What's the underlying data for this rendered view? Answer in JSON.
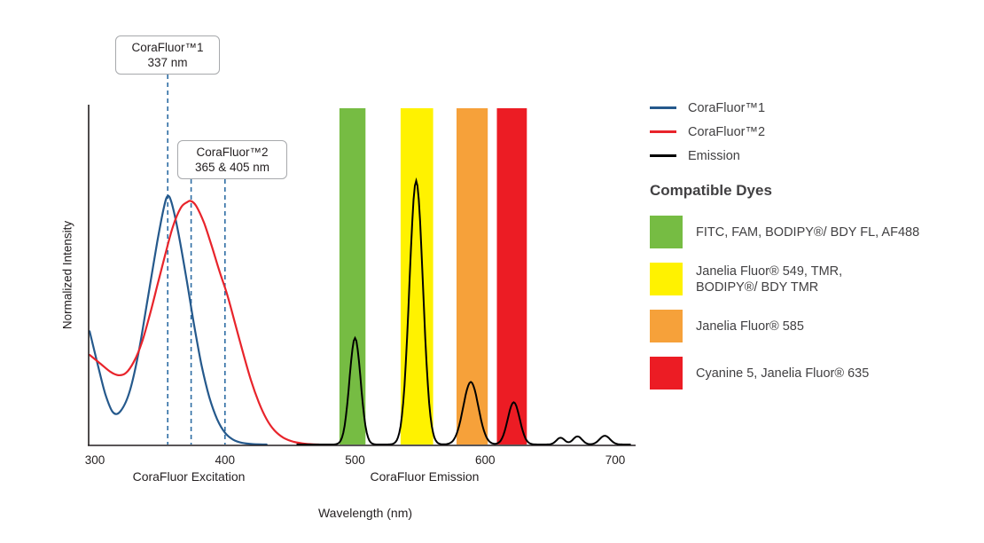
{
  "chart_data": {
    "type": "line",
    "title": "",
    "xlabel": "Wavelength (nm)",
    "ylabel": "Normalized Intensity",
    "x_ticks": [
      300,
      400,
      500,
      600,
      700
    ],
    "x_range": [
      300,
      715
    ],
    "y_range": [
      0,
      1
    ],
    "grid": false,
    "legend_position": "right",
    "region_labels": [
      "CoraFluor Excitation",
      "CoraFluor Emission"
    ],
    "series": [
      {
        "name": "CoraFluor™1",
        "kind": "excitation",
        "color": "#25598C",
        "points": [
          [
            296,
            0.335
          ],
          [
            302,
            0.24
          ],
          [
            308,
            0.15
          ],
          [
            314,
            0.095
          ],
          [
            320,
            0.1
          ],
          [
            327,
            0.16
          ],
          [
            334,
            0.28
          ],
          [
            341,
            0.44
          ],
          [
            348,
            0.6
          ],
          [
            353,
            0.7
          ],
          [
            356,
            0.735
          ],
          [
            359,
            0.715
          ],
          [
            364,
            0.63
          ],
          [
            370,
            0.5
          ],
          [
            376,
            0.36
          ],
          [
            382,
            0.235
          ],
          [
            388,
            0.14
          ],
          [
            394,
            0.075
          ],
          [
            400,
            0.035
          ],
          [
            406,
            0.015
          ],
          [
            413,
            0.005
          ],
          [
            422,
            0.001
          ],
          [
            432,
            0
          ]
        ]
      },
      {
        "name": "CoraFluor™2",
        "kind": "excitation",
        "color": "#E8242B",
        "points": [
          [
            296,
            0.265
          ],
          [
            304,
            0.24
          ],
          [
            312,
            0.215
          ],
          [
            318,
            0.205
          ],
          [
            324,
            0.212
          ],
          [
            330,
            0.245
          ],
          [
            336,
            0.3
          ],
          [
            342,
            0.38
          ],
          [
            348,
            0.47
          ],
          [
            354,
            0.56
          ],
          [
            360,
            0.645
          ],
          [
            366,
            0.7
          ],
          [
            371,
            0.717
          ],
          [
            374,
            0.72
          ],
          [
            378,
            0.705
          ],
          [
            384,
            0.655
          ],
          [
            390,
            0.585
          ],
          [
            396,
            0.51
          ],
          [
            402,
            0.44
          ],
          [
            408,
            0.355
          ],
          [
            414,
            0.27
          ],
          [
            420,
            0.19
          ],
          [
            426,
            0.125
          ],
          [
            432,
            0.075
          ],
          [
            438,
            0.042
          ],
          [
            445,
            0.02
          ],
          [
            453,
            0.008
          ],
          [
            462,
            0.002
          ],
          [
            472,
            0
          ]
        ]
      },
      {
        "name": "Emission",
        "kind": "emission",
        "color": "#000000",
        "draw_range_nm": [
          455,
          712
        ],
        "peaks": [
          {
            "center": 500,
            "sigma": 4.3,
            "amp": 0.315
          },
          {
            "center": 547,
            "sigma": 5.2,
            "amp": 0.78
          },
          {
            "center": 589,
            "sigma": 5.8,
            "amp": 0.185
          },
          {
            "center": 622,
            "sigma": 4.6,
            "amp": 0.125
          },
          {
            "center": 658,
            "sigma": 3.2,
            "amp": 0.02
          },
          {
            "center": 671,
            "sigma": 3.5,
            "amp": 0.024
          },
          {
            "center": 692,
            "sigma": 4.0,
            "amp": 0.026
          }
        ]
      }
    ],
    "bands": [
      {
        "from_nm": 488,
        "to_nm": 508,
        "color": "#76BC43",
        "label_lines": [
          "FITC, FAM, BODIPY®/ BDY FL, AF488"
        ]
      },
      {
        "from_nm": 535,
        "to_nm": 560,
        "color": "#FFF200",
        "label_lines": [
          "Janelia Fluor® 549, TMR,",
          "BODIPY®/ BDY TMR"
        ]
      },
      {
        "from_nm": 578,
        "to_nm": 602,
        "color": "#F6A13A",
        "label_lines": [
          "Janelia Fluor® 585"
        ]
      },
      {
        "from_nm": 609,
        "to_nm": 632,
        "color": "#EC1C24",
        "label_lines": [
          "Cyanine 5, Janelia Fluor® 635"
        ]
      }
    ],
    "annotations": [
      {
        "title": "CoraFluor™1",
        "value": "337 nm",
        "lines_nm": [
          356
        ]
      },
      {
        "title": "CoraFluor™2",
        "value": "365 & 405 nm",
        "lines_nm": [
          374,
          400
        ]
      }
    ],
    "annotation_line_color": "#2E6DA4"
  },
  "legend": {
    "dyes_heading": "Compatible Dyes"
  },
  "axis": {
    "color": "#231F20"
  }
}
